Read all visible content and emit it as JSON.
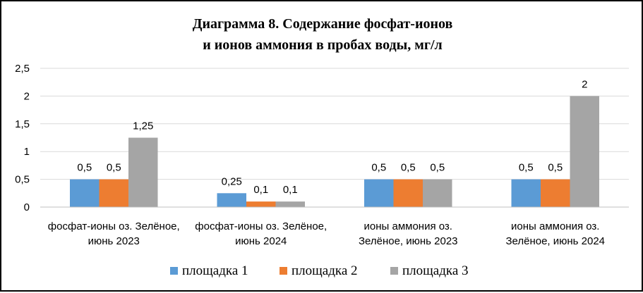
{
  "chart_data": {
    "type": "bar",
    "title": [
      "Диаграмма 8. Содержание фосфат-ионов",
      "и ионов аммония в пробах воды, мг/л"
    ],
    "categories": [
      [
        "фосфат-ионы оз. Зелёное,",
        "июнь 2023"
      ],
      [
        "фосфат-ионы оз. Зелёное,",
        "июнь 2024"
      ],
      [
        "ионы аммония оз.",
        "Зелёное, июнь 2023"
      ],
      [
        "ионы аммония оз.",
        "Зелёное, июнь 2024"
      ]
    ],
    "series": [
      {
        "name": "площадка 1",
        "color": "#5B9BD5",
        "values": [
          0.5,
          0.25,
          0.5,
          0.5
        ],
        "labels": [
          "0,5",
          "0,25",
          "0,5",
          "0,5"
        ]
      },
      {
        "name": "площадка 2",
        "color": "#ED7D31",
        "values": [
          0.5,
          0.1,
          0.5,
          0.5
        ],
        "labels": [
          "0,5",
          "0,1",
          "0,5",
          "0,5"
        ]
      },
      {
        "name": "площадка 3",
        "color": "#A5A5A5",
        "values": [
          1.25,
          0.1,
          0.5,
          2
        ],
        "labels": [
          "1,25",
          "0,1",
          "0,5",
          "2"
        ]
      }
    ],
    "y_ticks": [
      0,
      0.5,
      1,
      1.5,
      2,
      2.5
    ],
    "y_tick_labels": [
      "0",
      "0,5",
      "1",
      "1,5",
      "2",
      "2,5"
    ],
    "ylim": [
      0,
      2.5
    ],
    "grid": true,
    "legend_position": "bottom"
  }
}
